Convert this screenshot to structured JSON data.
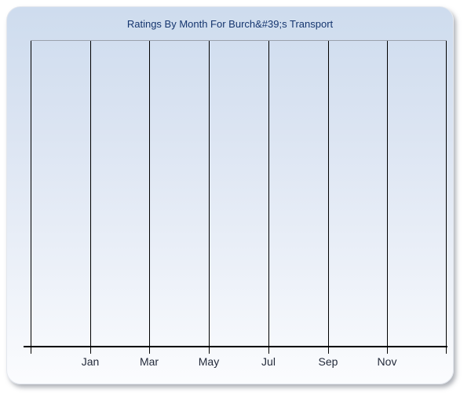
{
  "chart_data": {
    "type": "line",
    "title": "Ratings By Month For Burch&#39;s Transport",
    "x_axis": {
      "tick_labels": [
        "Jan",
        "Mar",
        "May",
        "Jul",
        "Sep",
        "Nov"
      ],
      "gridline_count": 8,
      "first_labeled_gridline": 1,
      "label_step": 1
    },
    "y_axis": {
      "tick_labels": []
    },
    "series": [],
    "grid": "vertical",
    "legend": "none"
  },
  "colors": {
    "title": "#15356e",
    "axis_label": "#232a3a",
    "gridline": "#000000",
    "axis_line": "#000000",
    "plot_top_border": "#9aa1ac",
    "panel_gradient_top": "#cedcee",
    "panel_gradient_bottom": "#fbfcfe",
    "page_background": "#ffffff"
  }
}
